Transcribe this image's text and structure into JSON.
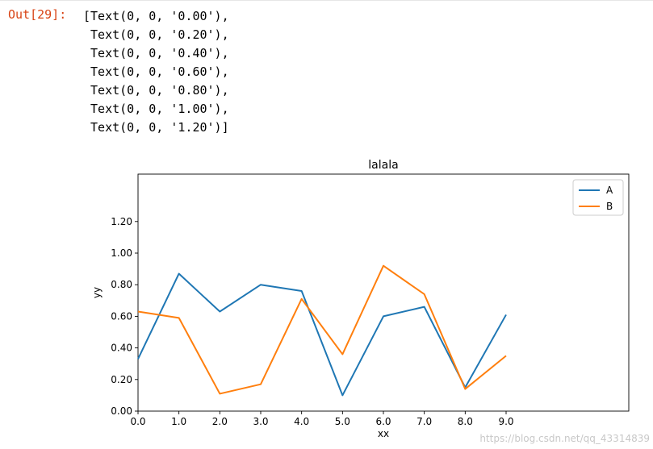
{
  "output": {
    "prompt": "Out[29]:",
    "lines": [
      "[Text(0, 0, '0.00'),",
      " Text(0, 0, '0.20'),",
      " Text(0, 0, '0.40'),",
      " Text(0, 0, '0.60'),",
      " Text(0, 0, '0.80'),",
      " Text(0, 0, '1.00'),",
      " Text(0, 0, '1.20')]"
    ]
  },
  "watermark": "https://blog.csdn.net/qq_43314839",
  "colors": {
    "A": "#1f77b4",
    "B": "#ff7f0e",
    "prompt": "#d84315"
  },
  "chart_data": {
    "type": "line",
    "title": "lalala",
    "xlabel": "xx",
    "ylabel": "yy",
    "xlim": [
      0,
      12
    ],
    "ylim": [
      0,
      1.5
    ],
    "xticks": [
      0,
      1,
      2,
      3,
      4,
      5,
      6,
      7,
      8,
      9
    ],
    "xticklabels": [
      "0.0",
      "1.0",
      "2.0",
      "3.0",
      "4.0",
      "5.0",
      "6.0",
      "7.0",
      "8.0",
      "9.0"
    ],
    "yticks": [
      0,
      0.2,
      0.4,
      0.6,
      0.8,
      1.0,
      1.2
    ],
    "yticklabels": [
      "0.00",
      "0.20",
      "0.40",
      "0.60",
      "0.80",
      "1.00",
      "1.20"
    ],
    "legend_position": "top-right",
    "grid": false,
    "x": [
      0,
      1,
      2,
      3,
      4,
      5,
      6,
      7,
      8,
      9
    ],
    "series": [
      {
        "name": "A",
        "values": [
          0.33,
          0.87,
          0.63,
          0.8,
          0.76,
          0.1,
          0.6,
          0.66,
          0.15,
          0.61
        ]
      },
      {
        "name": "B",
        "values": [
          0.63,
          0.59,
          0.11,
          0.17,
          0.71,
          0.36,
          0.92,
          0.74,
          0.14,
          0.35
        ]
      }
    ]
  }
}
